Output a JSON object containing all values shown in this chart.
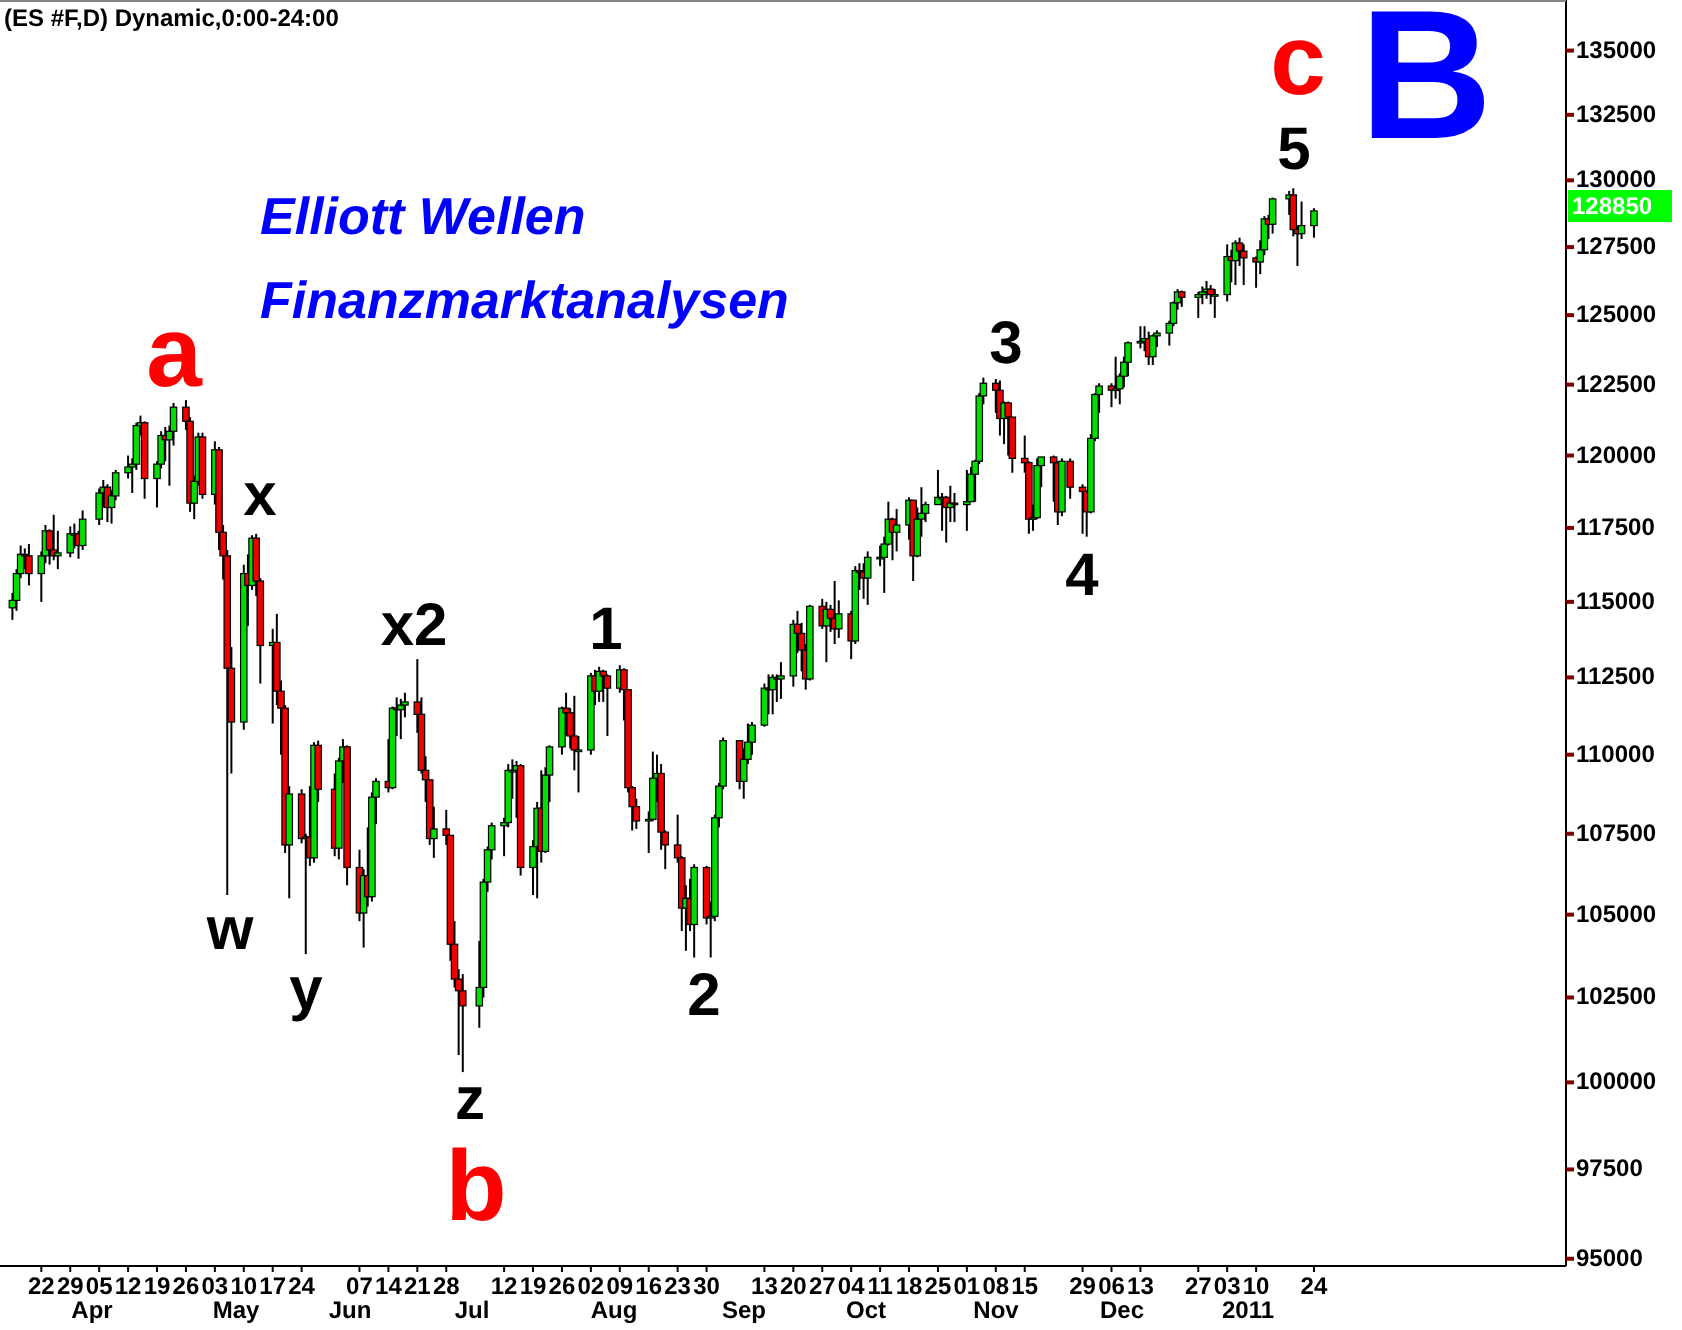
{
  "chart_data": {
    "type": "candlestick",
    "title": "(ES #F,D) Dynamic,0:00-24:00",
    "log": true,
    "colors": [
      "#00dd00",
      "#00dd00",
      "#00dd00",
      "#ee0000",
      "#ee0000",
      "#00dd00",
      "#00dd00",
      "#ee0000",
      "#ee0000",
      "#00dd00",
      "#00dd00",
      "#00dd00",
      "#ee0000",
      "#00dd00",
      "#00dd00",
      "#00dd00",
      "#ee0000",
      "#00dd00",
      "#00dd00",
      "#00dd00",
      "#00dd00",
      "#00dd00",
      "#00dd00",
      "#ee0000",
      "#00dd00",
      "#00dd00",
      "#ee0000",
      "#00dd00",
      "#00dd00",
      "#ee0000",
      "#ee0000",
      "#00dd00",
      "#00dd00",
      "#ee0000",
      "#00dd00",
      "#ee0000",
      "#ee0000",
      "#ee0000",
      "#ee0000",
      "#00dd00",
      "#ee0000",
      "#00dd00",
      "#ee0000",
      "#ee0000",
      "#00dd00",
      "#ee0000",
      "#ee0000",
      "#ee0000",
      "#00dd00",
      "#ee0000",
      "#00dd00",
      "#ee0000",
      "#00dd00",
      "#ee0000",
      "#ee0000",
      "#00dd00",
      "#00dd00",
      "#ee0000",
      "#ee0000",
      "#00dd00",
      "#ee0000",
      "#00dd00",
      "#00dd00",
      "#ee0000",
      "#00dd00",
      "#ee0000",
      "#00dd00",
      "#00dd00",
      "#ee0000",
      "#ee0000",
      "#ee0000",
      "#ee0000",
      "#00dd00",
      "#ee0000",
      "#ee0000",
      "#ee0000",
      "#ee0000",
      "#ee0000",
      "#00dd00",
      "#00dd00",
      "#00dd00",
      "#00dd00",
      "#00dd00",
      "#00dd00",
      "#00dd00",
      "#00dd00",
      "#ee0000",
      "#00dd00",
      "#00dd00",
      "#ee0000",
      "#00dd00",
      "#00dd00",
      "#00dd00",
      "#ee0000",
      "#ee0000",
      "#ee0000",
      "#00dd00",
      "#00dd00",
      "#ee0000",
      "#00dd00",
      "#ee0000",
      "#ee0000",
      "#00dd00",
      "#ee0000",
      "#ee0000",
      "#ee0000",
      "#ee0000",
      "#00dd00",
      "#00dd00",
      "#00dd00",
      "#ee0000",
      "#ee0000",
      "#ee0000",
      "#ee0000",
      "#00dd00",
      "#ee0000",
      "#00dd00",
      "#ee0000",
      "#00dd00",
      "#00dd00",
      "#00dd00",
      "#00dd00",
      "#ee0000",
      "#00dd00",
      "#00dd00",
      "#00dd00",
      "#00dd00",
      "#ee0000",
      "#00dd00",
      "#ee0000",
      "#00dd00",
      "#00dd00",
      "#ee0000",
      "#ee0000",
      "#ee0000",
      "#00dd00",
      "#ee0000",
      "#00dd00",
      "#ee0000",
      "#ee0000",
      "#00dd00",
      "#ee0000",
      "#00dd00",
      "#ee0000",
      "#ee0000",
      "#00dd00",
      "#00dd00",
      "#00dd00",
      "#00dd00",
      "#ee0000",
      "#00dd00",
      "#00dd00",
      "#ee0000",
      "#00dd00",
      "#00dd00",
      "#00dd00",
      "#00dd00",
      "#00dd00",
      "#ee0000",
      "#00dd00",
      "#ee0000",
      "#00dd00",
      "#00dd00",
      "#00dd00",
      "#00dd00",
      "#00dd00",
      "#ee0000",
      "#ee0000",
      "#00dd00",
      "#ee0000",
      "#ee0000",
      "#ee0000",
      "#ee0000",
      "#00dd00",
      "#00dd00",
      "#00dd00",
      "#ee0000",
      "#ee0000",
      "#00dd00",
      "#ee0000",
      "#ee0000",
      "#ee0000",
      "#00dd00",
      "#00dd00",
      "#00dd00",
      "#ee0000",
      "#00dd00",
      "#00dd00",
      "#00dd00",
      "#00dd00",
      "#00dd00",
      "#00dd00",
      "#ee0000",
      "#00dd00",
      "#00dd00",
      "#00dd00",
      "#00dd00",
      "#00dd00",
      "#ee0000",
      "#00dd00",
      "#00dd00",
      "#00dd00",
      "#ee0000",
      "#00dd00",
      "#00dd00",
      "#ee0000",
      "#00dd00",
      "#ee0000",
      "#ee0000",
      "#ee0000",
      "#00dd00",
      "#00dd00",
      "#ee0000",
      "#00dd00",
      "#00dd00",
      "#ee0000",
      "#ee0000",
      "#00dd00",
      "#00dd00"
    ],
    "xlim": [
      "2010-03-12",
      "2011-03-26"
    ],
    "ylim": [
      94800,
      137000
    ],
    "yticks": [
      95000,
      97500,
      100000,
      102500,
      105000,
      107500,
      110000,
      112500,
      115000,
      117500,
      120000,
      122500,
      125000,
      127500,
      130000,
      132500,
      135000
    ],
    "xticks": [
      {
        "value": "2010-03-22",
        "label": "22"
      },
      {
        "value": "2010-03-29",
        "label": "29"
      },
      {
        "value": "2010-04-05",
        "label": "05"
      },
      {
        "value": "2010-04-12",
        "label": "12"
      },
      {
        "value": "2010-04-19",
        "label": "19"
      },
      {
        "value": "2010-04-26",
        "label": "26"
      },
      {
        "value": "2010-05-03",
        "label": "03"
      },
      {
        "value": "2010-05-10",
        "label": "10"
      },
      {
        "value": "2010-05-17",
        "label": "17"
      },
      {
        "value": "2010-05-24",
        "label": "24"
      },
      {
        "value": "2010-06-07",
        "label": "07"
      },
      {
        "value": "2010-06-14",
        "label": "14"
      },
      {
        "value": "2010-06-21",
        "label": "21"
      },
      {
        "value": "2010-06-28",
        "label": "28"
      },
      {
        "value": "2010-07-12",
        "label": "12"
      },
      {
        "value": "2010-07-19",
        "label": "19"
      },
      {
        "value": "2010-07-26",
        "label": "26"
      },
      {
        "value": "2010-08-02",
        "label": "02"
      },
      {
        "value": "2010-08-09",
        "label": "09"
      },
      {
        "value": "2010-08-16",
        "label": "16"
      },
      {
        "value": "2010-08-23",
        "label": "23"
      },
      {
        "value": "2010-08-30",
        "label": "30"
      },
      {
        "value": "2010-09-13",
        "label": "13"
      },
      {
        "value": "2010-09-20",
        "label": "20"
      },
      {
        "value": "2010-09-27",
        "label": "27"
      },
      {
        "value": "2010-10-04",
        "label": "04"
      },
      {
        "value": "2010-10-11",
        "label": "11"
      },
      {
        "value": "2010-10-18",
        "label": "18"
      },
      {
        "value": "2010-10-25",
        "label": "25"
      },
      {
        "value": "2010-11-01",
        "label": "01"
      },
      {
        "value": "2010-11-08",
        "label": "08"
      },
      {
        "value": "2010-11-15",
        "label": "15"
      },
      {
        "value": "2010-11-29",
        "label": "29"
      },
      {
        "value": "2010-12-06",
        "label": "06"
      },
      {
        "value": "2010-12-13",
        "label": "13"
      },
      {
        "value": "2010-12-27",
        "label": "27"
      },
      {
        "value": "2011-01-03",
        "label": "03"
      },
      {
        "value": "2011-01-10",
        "label": "10"
      },
      {
        "value": "2011-01-24",
        "label": "24"
      }
    ],
    "annotations": [
      "Elliott Wellen",
      "Finanzmarktanalysen",
      "a",
      "x",
      "w",
      "y",
      "x2",
      "z",
      "b",
      "1",
      "2",
      "3",
      "4",
      "5",
      "c",
      "B",
      "128850",
      "Apr",
      "May",
      "Jun",
      "Jul",
      "Aug",
      "Sep",
      "Oct",
      "Nov",
      "Dec",
      "2011"
    ],
    "x": [
      "2010-03-15",
      "2010-03-16",
      "2010-03-17",
      "2010-03-18",
      "2010-03-19",
      "2010-03-22",
      "2010-03-23",
      "2010-03-24",
      "2010-03-25",
      "2010-03-26",
      "2010-03-29",
      "2010-03-30",
      "2010-03-31",
      "2010-04-01",
      "2010-04-05",
      "2010-04-06",
      "2010-04-07",
      "2010-04-08",
      "2010-04-09",
      "2010-04-12",
      "2010-04-13",
      "2010-04-14",
      "2010-04-15",
      "2010-04-16",
      "2010-04-19",
      "2010-04-20",
      "2010-04-21",
      "2010-04-22",
      "2010-04-23",
      "2010-04-26",
      "2010-04-27",
      "2010-04-28",
      "2010-04-29",
      "2010-04-30",
      "2010-05-03",
      "2010-05-04",
      "2010-05-05",
      "2010-05-06",
      "2010-05-07",
      "2010-05-10",
      "2010-05-11",
      "2010-05-12",
      "2010-05-13",
      "2010-05-14",
      "2010-05-17",
      "2010-05-18",
      "2010-05-19",
      "2010-05-20",
      "2010-05-21",
      "2010-05-24",
      "2010-05-25",
      "2010-05-26",
      "2010-05-27",
      "2010-05-28",
      "2010-06-01",
      "2010-06-02",
      "2010-06-03",
      "2010-06-04",
      "2010-06-07",
      "2010-06-08",
      "2010-06-09",
      "2010-06-10",
      "2010-06-11",
      "2010-06-14",
      "2010-06-15",
      "2010-06-16",
      "2010-06-17",
      "2010-06-18",
      "2010-06-21",
      "2010-06-22",
      "2010-06-23",
      "2010-06-24",
      "2010-06-25",
      "2010-06-28",
      "2010-06-29",
      "2010-06-30",
      "2010-07-01",
      "2010-07-02",
      "2010-07-06",
      "2010-07-07",
      "2010-07-08",
      "2010-07-09",
      "2010-07-12",
      "2010-07-13",
      "2010-07-14",
      "2010-07-15",
      "2010-07-16",
      "2010-07-19",
      "2010-07-20",
      "2010-07-21",
      "2010-07-22",
      "2010-07-23",
      "2010-07-26",
      "2010-07-27",
      "2010-07-28",
      "2010-07-29",
      "2010-07-30",
      "2010-08-02",
      "2010-08-03",
      "2010-08-04",
      "2010-08-05",
      "2010-08-06",
      "2010-08-09",
      "2010-08-10",
      "2010-08-11",
      "2010-08-12",
      "2010-08-13",
      "2010-08-16",
      "2010-08-17",
      "2010-08-18",
      "2010-08-19",
      "2010-08-20",
      "2010-08-23",
      "2010-08-24",
      "2010-08-25",
      "2010-08-26",
      "2010-08-27",
      "2010-08-30",
      "2010-08-31",
      "2010-09-01",
      "2010-09-02",
      "2010-09-03",
      "2010-09-07",
      "2010-09-08",
      "2010-09-09",
      "2010-09-10",
      "2010-09-13",
      "2010-09-14",
      "2010-09-15",
      "2010-09-16",
      "2010-09-17",
      "2010-09-20",
      "2010-09-21",
      "2010-09-22",
      "2010-09-23",
      "2010-09-24",
      "2010-09-27",
      "2010-09-28",
      "2010-09-29",
      "2010-09-30",
      "2010-10-01",
      "2010-10-04",
      "2010-10-05",
      "2010-10-06",
      "2010-10-07",
      "2010-10-08",
      "2010-10-11",
      "2010-10-12",
      "2010-10-13",
      "2010-10-14",
      "2010-10-15",
      "2010-10-18",
      "2010-10-19",
      "2010-10-20",
      "2010-10-21",
      "2010-10-22",
      "2010-10-25",
      "2010-10-26",
      "2010-10-27",
      "2010-10-28",
      "2010-10-29",
      "2010-11-01",
      "2010-11-02",
      "2010-11-03",
      "2010-11-04",
      "2010-11-05",
      "2010-11-08",
      "2010-11-09",
      "2010-11-10",
      "2010-11-11",
      "2010-11-12",
      "2010-11-15",
      "2010-11-16",
      "2010-11-17",
      "2010-11-18",
      "2010-11-19",
      "2010-11-22",
      "2010-11-23",
      "2010-11-24",
      "2010-11-26",
      "2010-11-29",
      "2010-11-30",
      "2010-12-01",
      "2010-12-02",
      "2010-12-03",
      "2010-12-06",
      "2010-12-07",
      "2010-12-08",
      "2010-12-09",
      "2010-12-10",
      "2010-12-13",
      "2010-12-14",
      "2010-12-15",
      "2010-12-16",
      "2010-12-17",
      "2010-12-20",
      "2010-12-21",
      "2010-12-22",
      "2010-12-23",
      "2010-12-27",
      "2010-12-28",
      "2010-12-29",
      "2010-12-30",
      "2010-12-31",
      "2011-01-03",
      "2011-01-04",
      "2011-01-05",
      "2011-01-06",
      "2011-01-07",
      "2011-01-10",
      "2011-01-11",
      "2011-01-12",
      "2011-01-13",
      "2011-01-14",
      "2011-01-18",
      "2011-01-19",
      "2011-01-20",
      "2011-01-21",
      "2011-01-24"
    ],
    "ohlc": [
      [
        114800,
        115300,
        114400,
        115050
      ],
      [
        115050,
        116100,
        114700,
        115950
      ],
      [
        115950,
        116900,
        115800,
        116600
      ],
      [
        116600,
        116800,
        116100,
        116550
      ],
      [
        116550,
        116950,
        115550,
        115950
      ],
      [
        115950,
        116700,
        115000,
        116550
      ],
      [
        116550,
        117600,
        116300,
        117400
      ],
      [
        117400,
        117450,
        116250,
        116750
      ],
      [
        116750,
        117950,
        116400,
        116550
      ],
      [
        116550,
        117400,
        116100,
        116650
      ],
      [
        116650,
        117550,
        116500,
        117300
      ],
      [
        117300,
        117650,
        116800,
        117300
      ],
      [
        117300,
        117400,
        116450,
        116900
      ],
      [
        116900,
        118100,
        116750,
        117800
      ],
      [
        117800,
        118850,
        117600,
        118700
      ],
      [
        118700,
        119150,
        118200,
        118900
      ],
      [
        118900,
        119000,
        117700,
        118200
      ],
      [
        118200,
        118800,
        117650,
        118600
      ],
      [
        118600,
        119500,
        118450,
        119400
      ],
      [
        119400,
        120000,
        119200,
        119600
      ],
      [
        119600,
        119900,
        118700,
        119700
      ],
      [
        119700,
        121150,
        119500,
        121050
      ],
      [
        121050,
        121400,
        120700,
        121150
      ],
      [
        121150,
        121200,
        118500,
        119200
      ],
      [
        119200,
        119800,
        118200,
        119700
      ],
      [
        119700,
        120850,
        119550,
        120700
      ],
      [
        120700,
        121000,
        119800,
        120550
      ],
      [
        120550,
        121050,
        118950,
        120850
      ],
      [
        120850,
        121850,
        120350,
        121700
      ],
      [
        121700,
        121950,
        120900,
        121200
      ],
      [
        121200,
        121350,
        118050,
        118350
      ],
      [
        118350,
        119300,
        117800,
        119100
      ],
      [
        119100,
        120800,
        118950,
        120650
      ],
      [
        120650,
        120800,
        118500,
        118650
      ],
      [
        118650,
        120500,
        118300,
        120200
      ],
      [
        120200,
        120300,
        116750,
        117350
      ],
      [
        117350,
        117600,
        115750,
        116550
      ],
      [
        116550,
        116750,
        105600,
        112800
      ],
      [
        112800,
        113500,
        109400,
        111050
      ],
      [
        111050,
        116250,
        110800,
        115950
      ],
      [
        115950,
        116600,
        114200,
        115550
      ],
      [
        115550,
        117250,
        115400,
        117150
      ],
      [
        117150,
        117300,
        115200,
        115700
      ],
      [
        115700,
        115800,
        112300,
        113550
      ],
      [
        113550,
        114100,
        111000,
        113650
      ],
      [
        113650,
        114600,
        111600,
        112050
      ],
      [
        112050,
        112400,
        110000,
        111500
      ],
      [
        111500,
        111600,
        106900,
        107150
      ],
      [
        107150,
        109000,
        105500,
        108750
      ],
      [
        108750,
        108900,
        107200,
        107350
      ],
      [
        107350,
        107500,
        103800,
        107400
      ],
      [
        107400,
        109000,
        106500,
        106750
      ],
      [
        106750,
        110400,
        106600,
        110300
      ],
      [
        110300,
        110450,
        108500,
        108900
      ],
      [
        108900,
        109400,
        106800,
        107050
      ],
      [
        107050,
        109900,
        106700,
        109800
      ],
      [
        109800,
        110500,
        109100,
        110250
      ],
      [
        110250,
        110300,
        105900,
        106450
      ],
      [
        106450,
        107000,
        104800,
        105050
      ],
      [
        105050,
        106400,
        104000,
        106200
      ],
      [
        106200,
        107700,
        105250,
        105550
      ],
      [
        105550,
        108800,
        105400,
        108650
      ],
      [
        108650,
        109250,
        107800,
        109150
      ],
      [
        109150,
        110500,
        108800,
        108950
      ],
      [
        108950,
        111550,
        108900,
        111500
      ],
      [
        111500,
        111850,
        110600,
        111450
      ],
      [
        111450,
        111800,
        110500,
        111600
      ],
      [
        111600,
        112000,
        111200,
        111700
      ],
      [
        111700,
        113100,
        110700,
        111300
      ],
      [
        111300,
        111850,
        109400,
        109500
      ],
      [
        109500,
        109950,
        108500,
        109200
      ],
      [
        109200,
        109200,
        107150,
        107350
      ],
      [
        107350,
        108350,
        106750,
        107650
      ],
      [
        107650,
        108250,
        107150,
        107450
      ],
      [
        107450,
        107450,
        103600,
        104100
      ],
      [
        104100,
        104800,
        102800,
        103050
      ],
      [
        103050,
        103350,
        100800,
        102700
      ],
      [
        102700,
        103200,
        100300,
        102250
      ],
      [
        102250,
        104200,
        101600,
        102800
      ],
      [
        102800,
        106100,
        102500,
        106000
      ],
      [
        106000,
        107100,
        105700,
        107000
      ],
      [
        107000,
        107850,
        106700,
        107750
      ],
      [
        107750,
        108000,
        106800,
        107850
      ],
      [
        107850,
        109700,
        107700,
        109500
      ],
      [
        109500,
        109850,
        108600,
        109500
      ],
      [
        109500,
        109800,
        108000,
        109650
      ],
      [
        109650,
        109700,
        106200,
        106450
      ],
      [
        106450,
        107300,
        105600,
        107100
      ],
      [
        107100,
        108500,
        105500,
        108300
      ],
      [
        108300,
        109500,
        106600,
        106950
      ],
      [
        106950,
        109600,
        106900,
        109350
      ],
      [
        109350,
        110300,
        108500,
        110250
      ],
      [
        110250,
        111550,
        110000,
        111500
      ],
      [
        111500,
        112000,
        110600,
        111350
      ],
      [
        111350,
        111500,
        110200,
        110600
      ],
      [
        110600,
        111900,
        109500,
        110150
      ],
      [
        110150,
        110600,
        108800,
        110150
      ],
      [
        110150,
        112650,
        110000,
        112550
      ],
      [
        112550,
        112750,
        111600,
        112050
      ],
      [
        112050,
        112850,
        111700,
        112700
      ],
      [
        112700,
        112750,
        111700,
        112550
      ],
      [
        112550,
        112600,
        110600,
        112150
      ],
      [
        112150,
        112900,
        112000,
        112750
      ],
      [
        112750,
        112800,
        111100,
        112100
      ],
      [
        112100,
        112100,
        108800,
        108950
      ],
      [
        108950,
        109000,
        107600,
        108350
      ],
      [
        108350,
        108600,
        107650,
        107900
      ],
      [
        107900,
        108200,
        106900,
        107950
      ],
      [
        107950,
        110100,
        107900,
        109250
      ],
      [
        109250,
        110000,
        108500,
        109400
      ],
      [
        109400,
        109700,
        107000,
        107550
      ],
      [
        107550,
        107600,
        106400,
        107150
      ],
      [
        107150,
        108100,
        106600,
        106750
      ],
      [
        106750,
        106800,
        104500,
        105200
      ],
      [
        105200,
        105900,
        103900,
        105500
      ],
      [
        105500,
        106100,
        104500,
        104700
      ],
      [
        104700,
        106550,
        103700,
        106450
      ],
      [
        106450,
        106500,
        104700,
        104900
      ],
      [
        104900,
        105400,
        103700,
        104950
      ],
      [
        104950,
        108100,
        104800,
        108000
      ],
      [
        108000,
        109100,
        107700,
        109000
      ],
      [
        109000,
        110550,
        108900,
        110450
      ],
      [
        110450,
        110450,
        108900,
        109150
      ],
      [
        109150,
        110200,
        108600,
        109850
      ],
      [
        109850,
        111000,
        109700,
        110400
      ],
      [
        110400,
        111050,
        110000,
        110950
      ],
      [
        110950,
        112300,
        110900,
        112150
      ],
      [
        112150,
        112600,
        111300,
        112100
      ],
      [
        112100,
        112600,
        111300,
        112500
      ],
      [
        112500,
        112600,
        111700,
        112450
      ],
      [
        112450,
        113000,
        111800,
        112550
      ],
      [
        112550,
        114400,
        112200,
        114250
      ],
      [
        114250,
        114700,
        113300,
        113950
      ],
      [
        113950,
        114300,
        112700,
        113400
      ],
      [
        113400,
        113600,
        112100,
        112450
      ],
      [
        112450,
        114900,
        112400,
        114850
      ],
      [
        114850,
        115100,
        114100,
        114200
      ],
      [
        114200,
        115000,
        113000,
        114750
      ],
      [
        114750,
        114900,
        114000,
        114450
      ],
      [
        114450,
        115700,
        113600,
        114100
      ],
      [
        114100,
        115050,
        113800,
        114600
      ],
      [
        114600,
        114700,
        113100,
        113700
      ],
      [
        113700,
        116200,
        113600,
        116050
      ],
      [
        116050,
        116300,
        115400,
        116000
      ],
      [
        116000,
        116300,
        115100,
        115800
      ],
      [
        115800,
        116700,
        114900,
        116500
      ],
      [
        116500,
        116900,
        116200,
        116500
      ],
      [
        116500,
        117200,
        115300,
        116950
      ],
      [
        116950,
        118400,
        116900,
        117800
      ],
      [
        117800,
        117850,
        116400,
        117350
      ],
      [
        117350,
        118150,
        116700,
        117600
      ],
      [
        117600,
        118550,
        117100,
        118450
      ],
      [
        118450,
        118450,
        115700,
        116550
      ],
      [
        116550,
        118200,
        116500,
        117800
      ],
      [
        117800,
        118900,
        117200,
        118000
      ],
      [
        118000,
        118400,
        117700,
        118300
      ],
      [
        118300,
        119500,
        118300,
        118550
      ],
      [
        118550,
        118700,
        117400,
        118550
      ],
      [
        118550,
        118600,
        117000,
        118200
      ],
      [
        118200,
        118950,
        117700,
        118350
      ],
      [
        118350,
        118700,
        117700,
        118300
      ],
      [
        118300,
        119500,
        117400,
        118400
      ],
      [
        118400,
        119600,
        118400,
        119350
      ],
      [
        119350,
        119850,
        118400,
        119800
      ],
      [
        119800,
        122200,
        119700,
        122100
      ],
      [
        122100,
        122750,
        121800,
        122550
      ],
      [
        122550,
        122700,
        121500,
        122300
      ],
      [
        122300,
        122650,
        120700,
        121300
      ],
      [
        121300,
        121900,
        120400,
        121850
      ],
      [
        121850,
        121900,
        120000,
        121350
      ],
      [
        121350,
        121350,
        119400,
        119900
      ],
      [
        119900,
        120700,
        119400,
        119750
      ],
      [
        119750,
        119800,
        117300,
        117800
      ],
      [
        117800,
        118300,
        117400,
        117850
      ],
      [
        117850,
        119900,
        117800,
        119650
      ],
      [
        119650,
        119950,
        118900,
        119950
      ],
      [
        119950,
        120000,
        118400,
        119750
      ],
      [
        119750,
        119800,
        117600,
        118050
      ],
      [
        118050,
        119900,
        117900,
        119800
      ],
      [
        119800,
        119900,
        118500,
        118900
      ],
      [
        118900,
        119000,
        117300,
        118750
      ],
      [
        118750,
        118800,
        117200,
        118050
      ],
      [
        118050,
        120750,
        118000,
        120600
      ],
      [
        120600,
        122200,
        120500,
        122150
      ],
      [
        122150,
        122550,
        121500,
        122450
      ],
      [
        122450,
        122550,
        121700,
        122300
      ],
      [
        122300,
        123500,
        122000,
        122350
      ],
      [
        122350,
        122900,
        121800,
        122800
      ],
      [
        122800,
        123500,
        122400,
        123300
      ],
      [
        123300,
        124050,
        122800,
        124000
      ],
      [
        124000,
        124600,
        123800,
        124050
      ],
      [
        124050,
        124600,
        123700,
        124150
      ],
      [
        124150,
        124400,
        123200,
        123500
      ],
      [
        123500,
        124300,
        123200,
        124250
      ],
      [
        124250,
        124450,
        123850,
        124350
      ],
      [
        124350,
        124800,
        123900,
        124700
      ],
      [
        124700,
        125500,
        124600,
        125450
      ],
      [
        125450,
        125950,
        125200,
        125850
      ],
      [
        125850,
        125900,
        125300,
        125650
      ],
      [
        125650,
        125850,
        124900,
        125750
      ],
      [
        125750,
        126050,
        125400,
        125850
      ],
      [
        125850,
        126250,
        125600,
        125950
      ],
      [
        125950,
        126100,
        125400,
        125750
      ],
      [
        125750,
        125950,
        124900,
        125750
      ],
      [
        125750,
        127600,
        125500,
        127150
      ],
      [
        127150,
        127400,
        126200,
        127000
      ],
      [
        127000,
        127750,
        126100,
        127650
      ],
      [
        127650,
        127850,
        126800,
        127350
      ],
      [
        127350,
        127600,
        126100,
        127100
      ],
      [
        127100,
        127150,
        126000,
        126950
      ],
      [
        126950,
        127750,
        126500,
        127400
      ],
      [
        127400,
        128650,
        127200,
        128550
      ],
      [
        128550,
        128700,
        127800,
        128350
      ],
      [
        128350,
        129350,
        128000,
        129300
      ],
      [
        129300,
        129600,
        128700,
        129450
      ],
      [
        129450,
        129700,
        127900,
        128150
      ],
      [
        128150,
        128300,
        126800,
        128000
      ],
      [
        128000,
        129200,
        127800,
        128300
      ],
      [
        128300,
        128950,
        127850,
        128850
      ]
    ]
  }
}
